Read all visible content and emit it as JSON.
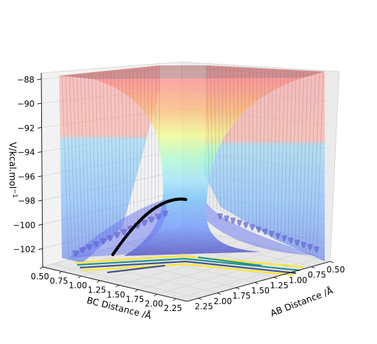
{
  "chart_data": {
    "type": "surface3d",
    "title": "",
    "zlabel": "V/kcal.mol$^{-1}$",
    "zlabel_text": "V/kcal.mol",
    "zlabel_sup": "−1",
    "xlabel": "BC Distance /Å",
    "ylabel": "AB Distance /Å",
    "x_ticks": [
      "0.50",
      "0.75",
      "1.00",
      "1.25",
      "1.50",
      "1.75",
      "2.00",
      "2.25"
    ],
    "y_ticks": [
      "0.50",
      "0.75",
      "1.00",
      "1.25",
      "1.50",
      "1.75",
      "2.00",
      "2.25"
    ],
    "z_ticks": [
      "−88",
      "−90",
      "−92",
      "−94",
      "−96",
      "−98",
      "−100",
      "−102"
    ],
    "xlim": [
      0.5,
      2.4
    ],
    "ylim": [
      0.5,
      2.4
    ],
    "zlim": [
      -103.5,
      -87.5
    ],
    "colormap": "jet",
    "surface_alpha": 0.45,
    "grid": true,
    "trajectory": {
      "color": "#000000",
      "marker": "dot",
      "description_points_bc_ab_v": [
        [
          0.95,
          2.3,
          -103.0
        ],
        [
          1.05,
          2.1,
          -102.4
        ],
        [
          1.15,
          1.9,
          -101.6
        ],
        [
          1.25,
          1.7,
          -100.6
        ],
        [
          1.35,
          1.5,
          -99.6
        ],
        [
          1.45,
          1.3,
          -98.6
        ],
        [
          1.5,
          1.2,
          -98.1
        ]
      ]
    },
    "contours_on_floor": {
      "colors": [
        "#fde725",
        "#21918c",
        "#3b528b"
      ]
    }
  }
}
